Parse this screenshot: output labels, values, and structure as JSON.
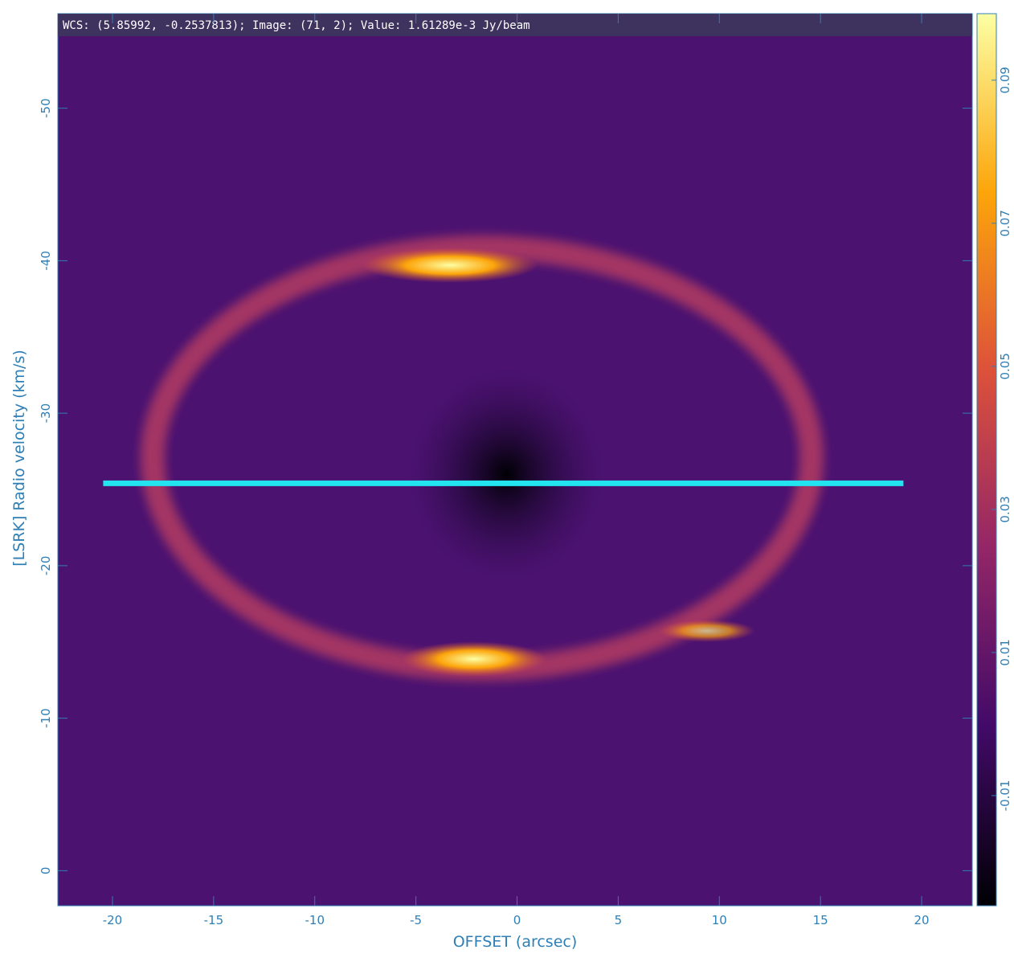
{
  "status_bar": {
    "text": "WCS: (5.85992, -0.2537813); Image: (71, 2); Value:  1.61289e-3 Jy/beam"
  },
  "image_axes": {
    "xlabel": "OFFSET (arcsec)",
    "ylabel": "[LSRK] Radio velocity (km/s)",
    "xlim": [
      -22.7,
      22.5
    ],
    "ylim": [
      2.3,
      -56.2
    ],
    "xticks": [
      -20,
      -15,
      -10,
      -5,
      0,
      5,
      10,
      15,
      20
    ],
    "yticks": [
      0,
      -10,
      -20,
      -30,
      -40,
      -50
    ]
  },
  "colorbar": {
    "lim": [
      -0.0254,
      0.0993
    ],
    "ticks": [
      -0.01,
      0.01,
      0.03,
      0.05,
      0.07,
      0.09
    ]
  },
  "cut_line": {
    "x": [
      -20.46,
      19.1
    ],
    "y": -25.4,
    "color": "#22e5f0"
  }
}
